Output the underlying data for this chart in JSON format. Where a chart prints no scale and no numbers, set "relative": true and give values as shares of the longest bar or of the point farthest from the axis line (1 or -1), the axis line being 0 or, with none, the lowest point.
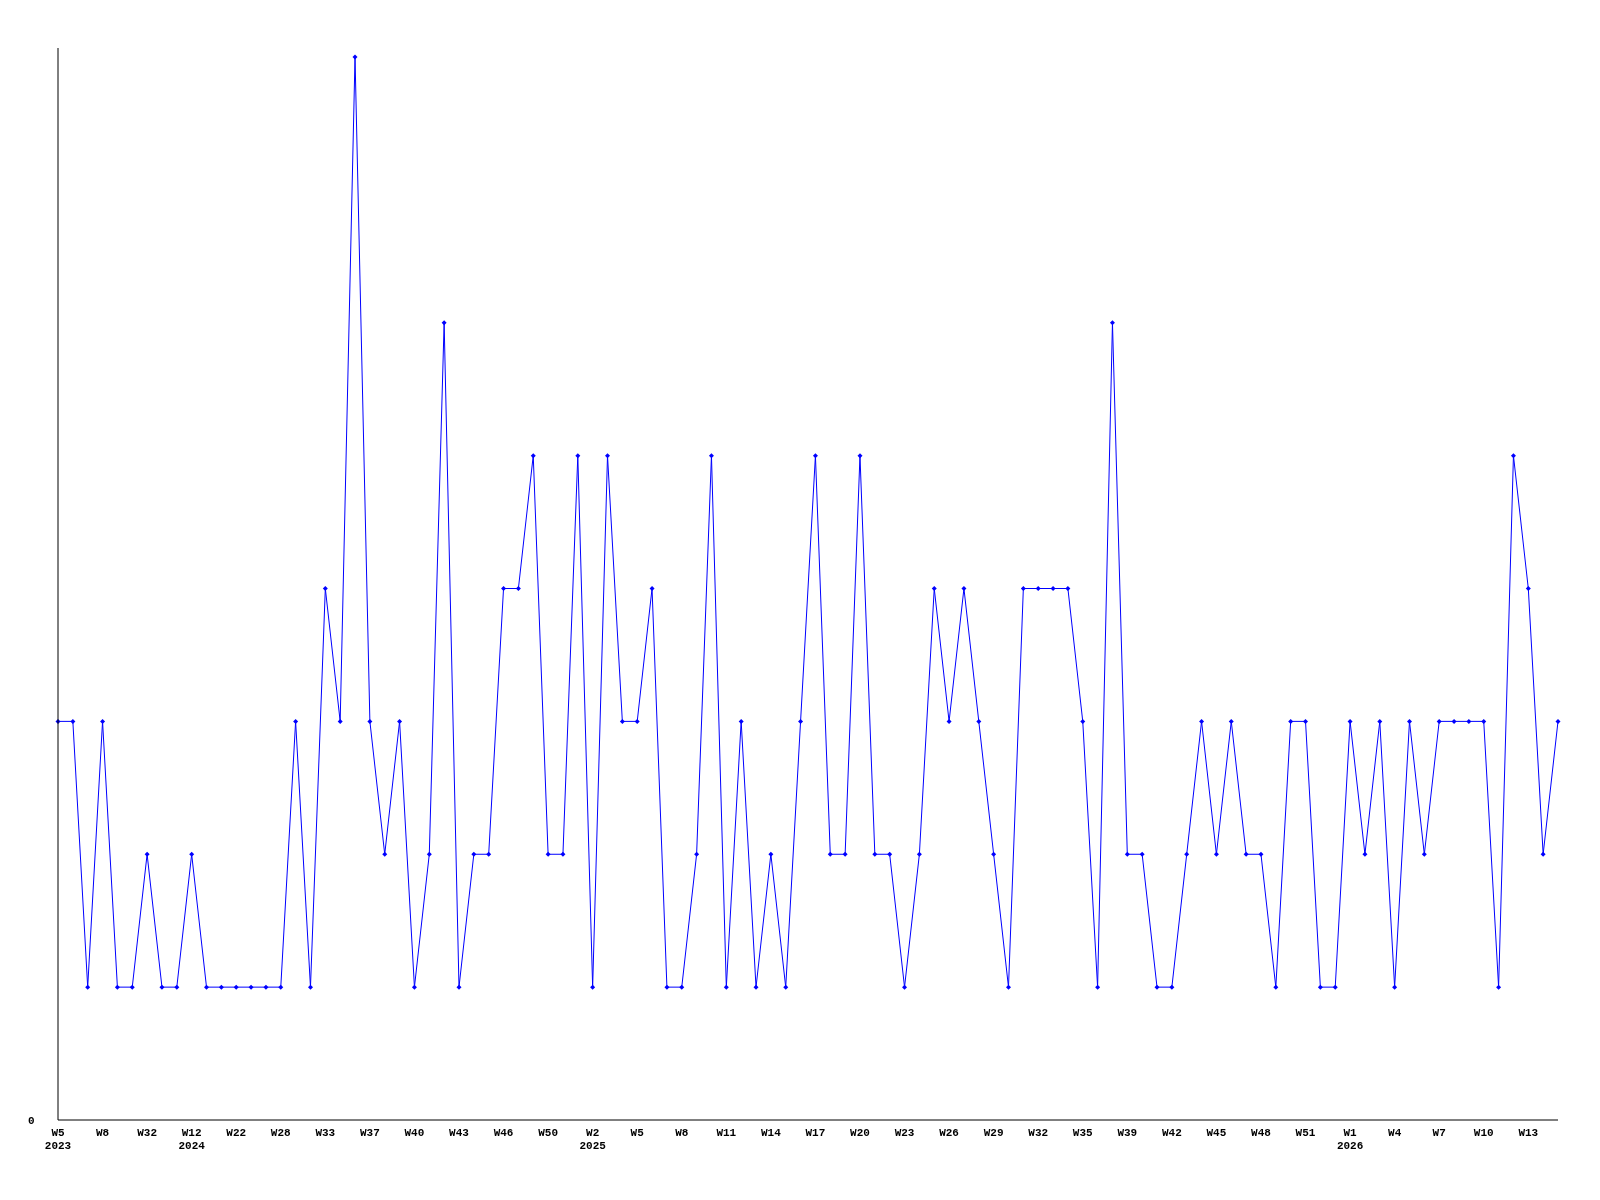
{
  "chart_data": {
    "type": "line",
    "relative": true,
    "marker": "diamond",
    "line_style": "solid",
    "categories": [
      "W5\n2023",
      null,
      null,
      "W8",
      null,
      null,
      "W32",
      null,
      null,
      "W12\n2024",
      null,
      null,
      "W22",
      null,
      null,
      "W28",
      null,
      null,
      "W33",
      null,
      null,
      "W37",
      null,
      null,
      "W40",
      null,
      null,
      "W43",
      null,
      null,
      "W46",
      null,
      null,
      "W50",
      null,
      null,
      "W2\n2025",
      null,
      null,
      "W5",
      null,
      null,
      "W8",
      null,
      null,
      "W11",
      null,
      null,
      "W14",
      null,
      null,
      "W17",
      null,
      null,
      "W20",
      null,
      null,
      "W23",
      null,
      null,
      "W26",
      null,
      null,
      "W29",
      null,
      null,
      "W32",
      null,
      null,
      "W35",
      null,
      null,
      "W39",
      null,
      null,
      "W42",
      null,
      null,
      "W45",
      null,
      null,
      "W48",
      null,
      null,
      "W51",
      null,
      null,
      "W1\n2026",
      null,
      null,
      "W4",
      null,
      null,
      "W7",
      null,
      null,
      "W10",
      null,
      null,
      "W13",
      null,
      null
    ],
    "series": [
      {
        "color": "#0000ff",
        "values": [
          0.375,
          0.375,
          0.125,
          0.375,
          0.125,
          0.125,
          0.25,
          0.125,
          0.125,
          0.25,
          0.125,
          0.125,
          0.125,
          0.125,
          0.125,
          0.125,
          0.375,
          0.125,
          0.5,
          0.375,
          1,
          0.375,
          0.25,
          0.375,
          0.125,
          0.25,
          0.75,
          0.125,
          0.25,
          0.25,
          0.5,
          0.5,
          0.625,
          0.25,
          0.25,
          0.625,
          0.125,
          0.625,
          0.375,
          0.375,
          0.5,
          0.125,
          0.125,
          0.25,
          0.625,
          0.125,
          0.375,
          0.125,
          0.25,
          0.125,
          0.375,
          0.625,
          0.25,
          0.25,
          0.625,
          0.25,
          0.25,
          0.125,
          0.25,
          0.5,
          0.375,
          0.5,
          0.375,
          0.25,
          0.125,
          0.5,
          0.5,
          0.5,
          0.5,
          0.375,
          0.125,
          0.75,
          0.25,
          0.25,
          0.125,
          0.125,
          0.25,
          0.375,
          0.25,
          0.375,
          0.25,
          0.25,
          0.125,
          0.375,
          0.375,
          0.125,
          0.125,
          0.375,
          0.25,
          0.375,
          0.125,
          0.375,
          0.25,
          0.375,
          0.375,
          0.375,
          0.375,
          0.125,
          0.625,
          0.5,
          0.25,
          0.375
        ]
      }
    ],
    "annotations": [
      "0"
    ]
  }
}
